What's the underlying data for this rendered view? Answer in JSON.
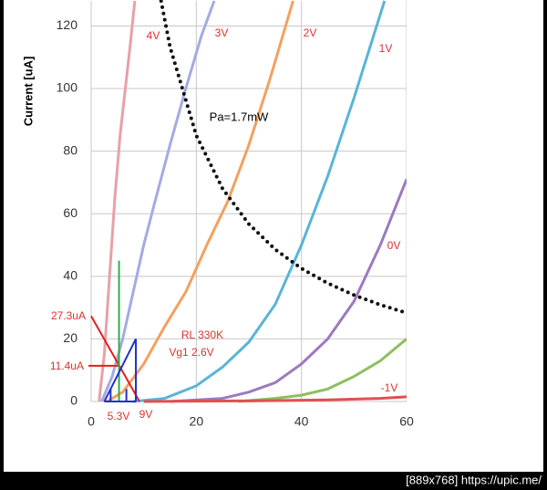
{
  "chart_data": {
    "type": "line",
    "ylabel": "Current [uA]",
    "xlim": [
      0,
      60
    ],
    "ylim": [
      0,
      128
    ],
    "xticks": [
      0,
      20,
      40,
      60
    ],
    "yticks": [
      0,
      20,
      40,
      60,
      80,
      100,
      120
    ],
    "grid": true,
    "series": [
      {
        "name": "4V",
        "color": "#e8a0a8",
        "x": [
          1.5,
          2.5,
          3.5,
          4.5,
          5.5,
          6.5,
          7.5,
          8.3
        ],
        "values": [
          0,
          15,
          40,
          65,
          85,
          100,
          115,
          128
        ]
      },
      {
        "name": "3V",
        "color": "#a4aae2",
        "x": [
          2,
          4,
          6,
          8,
          10,
          12,
          15,
          18,
          21,
          23.4
        ],
        "values": [
          0,
          8,
          20,
          35,
          50,
          63,
          82,
          100,
          117,
          128
        ]
      },
      {
        "name": "2V",
        "color": "#f4a060",
        "x": [
          3,
          6,
          10,
          14,
          18,
          22,
          26,
          30,
          34,
          38.4
        ],
        "values": [
          0,
          3,
          12,
          24,
          35,
          50,
          64,
          82,
          103,
          128
        ]
      },
      {
        "name": "1V",
        "color": "#5ab4d8",
        "x": [
          8,
          14,
          20,
          25,
          30,
          35,
          40,
          45,
          50,
          55.8
        ],
        "values": [
          0,
          1,
          5,
          11,
          19,
          31,
          50,
          72,
          97,
          128
        ]
      },
      {
        "name": "0V",
        "color": "#9b7ac0",
        "x": [
          15,
          25,
          30,
          35,
          40,
          45,
          50,
          55,
          60
        ],
        "values": [
          0,
          1,
          3,
          6,
          12,
          20,
          32,
          50,
          71
        ]
      },
      {
        "name": "-1V",
        "color": "#8cc060",
        "x": [
          28,
          35,
          40,
          45,
          50,
          55,
          60
        ],
        "values": [
          0,
          1,
          2,
          4,
          8,
          13,
          20
        ]
      },
      {
        "color": "#e05050",
        "x": [
          10,
          30,
          45,
          55,
          60
        ],
        "values": [
          0,
          0.2,
          0.5,
          1,
          1.5
        ]
      },
      {
        "name": "Pa=1.7mW",
        "color": "#111111",
        "dash": "dotted",
        "x": [
          13.3,
          15,
          20,
          25,
          30,
          35,
          40,
          45,
          50,
          55,
          60
        ],
        "values": [
          128,
          113.3,
          85,
          68,
          56.7,
          48.6,
          42.5,
          37.8,
          34,
          30.9,
          28.3
        ]
      }
    ],
    "lines": [
      {
        "color": "#e02020",
        "x": [
          0,
          9.2
        ],
        "y": [
          27.3,
          0
        ]
      },
      {
        "color": "#e02020",
        "x": [
          -0.5,
          5.3
        ],
        "y": [
          11.4,
          11.4
        ]
      },
      {
        "color": "#30b040",
        "x": [
          5.3,
          5.3
        ],
        "y": [
          0,
          45
        ]
      },
      {
        "color": "#2030d0",
        "x": [
          2.5,
          8.5
        ],
        "y": [
          0,
          20
        ]
      },
      {
        "color": "#2030d0",
        "x": [
          8.5,
          8.5
        ],
        "y": [
          0,
          20
        ]
      },
      {
        "color": "#2030d0",
        "x": [
          2.5,
          8.5
        ],
        "y": [
          0,
          0
        ]
      },
      {
        "color": "#2030d0",
        "x": [
          3.7,
          3.7
        ],
        "y": [
          0,
          4
        ]
      },
      {
        "color": "#2030d0",
        "x": [
          6.7,
          6.7
        ],
        "y": [
          0,
          4
        ]
      }
    ],
    "annotations": [
      "RL 330K",
      "Vg1 2.6V",
      "27.3uA",
      "11.4uA",
      "5.3V",
      "9V"
    ]
  },
  "footer": "[889x768] https://upic.me/"
}
